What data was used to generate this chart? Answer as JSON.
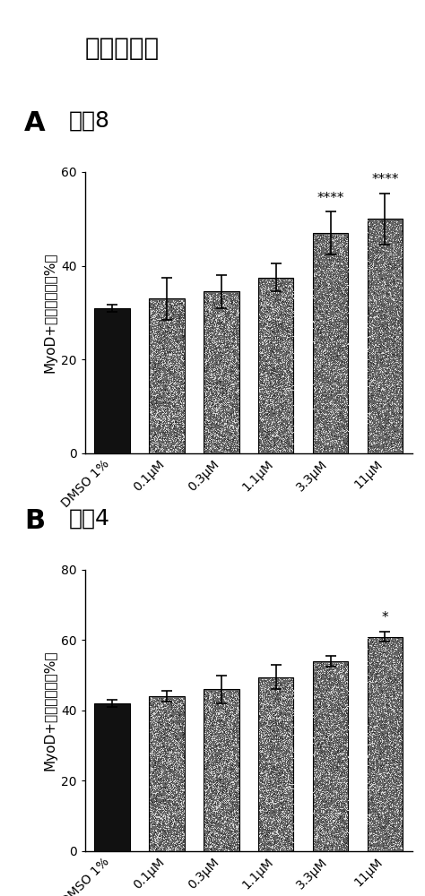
{
  "title": "黄姜味草醇",
  "panel_A_label": "A",
  "panel_A_subtitle": "供体8",
  "panel_B_label": "B",
  "panel_B_subtitle": "供体4",
  "categories": [
    "DMSO 1%",
    "0.1μM",
    "0.3μM",
    "1.1μM",
    "3.3μM",
    "11μM"
  ],
  "panel_A": {
    "values": [
      31.0,
      33.0,
      34.5,
      37.5,
      47.0,
      50.0
    ],
    "errors": [
      0.8,
      4.5,
      3.5,
      3.0,
      4.5,
      5.5
    ],
    "ylim": [
      0,
      60
    ],
    "yticks": [
      0,
      20,
      40,
      60
    ],
    "ylabel": "MyoD+细胞的比例（%）",
    "significance": [
      "",
      "",
      "",
      "",
      "****",
      "****"
    ]
  },
  "panel_B": {
    "values": [
      42.0,
      44.0,
      46.0,
      49.5,
      54.0,
      61.0
    ],
    "errors": [
      1.0,
      1.5,
      4.0,
      3.5,
      1.5,
      1.5
    ],
    "ylim": [
      0,
      80
    ],
    "yticks": [
      0,
      20,
      40,
      60,
      80
    ],
    "ylabel": "MyoD+细胞的比例（%）",
    "significance": [
      "",
      "",
      "",
      "",
      "",
      "*"
    ]
  },
  "bar_color_first": "#111111",
  "bar_color_rest": "#666666",
  "background_color": "#ffffff",
  "title_fontsize": 20,
  "label_fontsize": 22,
  "subtitle_fontsize": 18,
  "tick_fontsize": 10,
  "ylabel_fontsize": 11,
  "sig_fontsize": 11
}
